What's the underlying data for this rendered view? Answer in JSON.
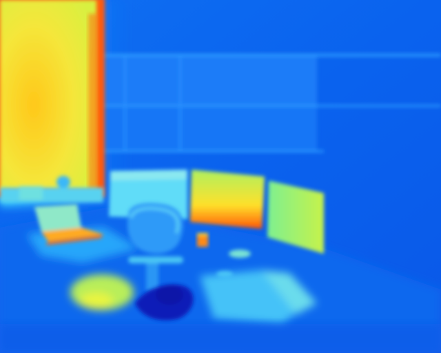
{
  "image": {
    "kind": "thermal-camera-photo",
    "subject": "office-room",
    "palette": {
      "cold": "#0a5ff0",
      "cool": "#1e8cff",
      "mild": "#3cc8ff",
      "warm": "#c8f03c",
      "hot": "#ffd21e",
      "hottest": "#ff3c00",
      "coldest": "#0a14b4"
    }
  }
}
